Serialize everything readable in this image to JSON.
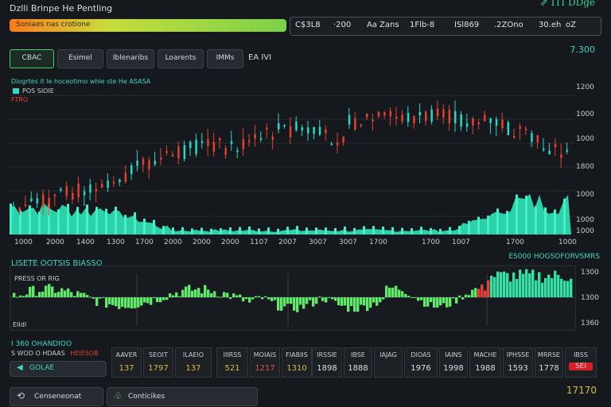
{
  "app": {
    "title": "Dzlli Brinpe He Pentling",
    "brand": "ITI DDge"
  },
  "search": {
    "placeholder": "Soniaes nas crotione"
  },
  "ticker": {
    "items": [
      "C$3L8",
      "·200",
      "Aa",
      "Zans",
      "1Flb-8",
      "ISl869",
      ".2ZOno",
      "30.eh",
      "oZ"
    ]
  },
  "tabs": [
    {
      "label": "CBAC"
    },
    {
      "label": "Esimel"
    },
    {
      "label": "Iblenaribs"
    },
    {
      "label": "Loarents"
    },
    {
      "label": "IMMs"
    }
  ],
  "toolbar": {
    "extra_label": "EA IVI",
    "price_right": "7.300"
  },
  "main_chart": {
    "header": "Diogrtes it le hoceotimo whie ste He ASASA",
    "legend": [
      {
        "label": "POS SIOIE",
        "color": "#3ad4c8"
      }
    ],
    "legend_sub": "FTRO",
    "y_labels": [
      "1200",
      "1000",
      "1000",
      "1800",
      "1000",
      "1000",
      "1000"
    ],
    "x_labels": [
      "1000",
      "2000",
      "1400",
      "1300",
      "1700",
      "2000",
      "2000",
      "2000",
      "1107",
      "2007",
      "3007",
      "3007",
      "1700",
      "1700",
      "1007",
      "1700",
      "1000"
    ]
  },
  "lower_chart": {
    "title": "LISETE OOTSIS BIASSO",
    "title_right": "ES000 HOGSOFORVSMRS",
    "sub_label": "PRESS OR RIG",
    "bottom_label": "EIIdI",
    "y_labels": [
      "1300",
      "1300",
      "1360"
    ]
  },
  "summary": {
    "title": "I 360 OHANDIOO",
    "subtitle": "S WOD O HDAAS",
    "subtitle_accent": "HEIESOB",
    "action_label": "GOLAE"
  },
  "cards": [
    {
      "head": "AAVER",
      "value": "137",
      "color": "#d8b840"
    },
    {
      "head": "SEOIT",
      "value": "1797",
      "color": "#d8b840"
    },
    {
      "head": "ILAEIO",
      "value": "137",
      "color": "#d8b840"
    },
    {
      "head": "IIIRSS",
      "value": "521",
      "color": "#d8b840"
    },
    {
      "head": "MOIAIS",
      "value": "1217",
      "color": "#e05050"
    },
    {
      "head": "FIABIIS",
      "value": "1310",
      "color": "#d8b840"
    },
    {
      "head": "IRSSIE",
      "value": "1898",
      "color": "#d7dde2"
    },
    {
      "head": "IBSE",
      "value": "1888",
      "color": "#d7dde2"
    },
    {
      "head": "IAJAG",
      "value": "",
      "color": "#e05050"
    },
    {
      "head": "DIOAS",
      "value": "1976",
      "color": "#d7dde2"
    },
    {
      "head": "IAINS",
      "value": "1998",
      "color": "#d7dde2"
    },
    {
      "head": "MACHE",
      "value": "1988",
      "color": "#d7dde2"
    },
    {
      "head": "IPHSSE",
      "value": "1593",
      "color": "#d7dde2"
    },
    {
      "head": "MRRSE",
      "value": "1778",
      "color": "#d7dde2"
    },
    {
      "head": "IBSS",
      "value": "SEI",
      "color": "#ffffff"
    }
  ],
  "footer": {
    "left_button": "Censeneonat",
    "right_button": "Conticikes",
    "value": "17170"
  },
  "colors": {
    "accent": "#3fd7c3",
    "up": "#27d9c4",
    "down": "#e2422f",
    "volume": "#2fe6b9",
    "bar_green": "#62e86a",
    "bar_red": "#e5413a"
  }
}
